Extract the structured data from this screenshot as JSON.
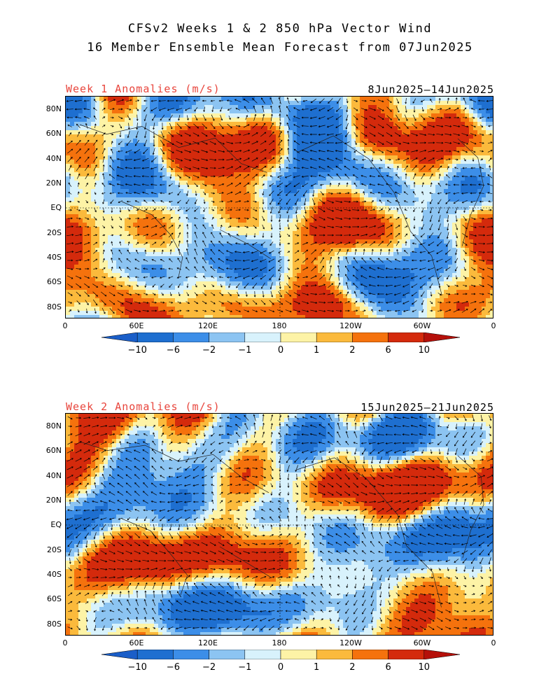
{
  "title": {
    "line1": "CFSv2 Weeks 1 & 2 850 hPa Vector Wind",
    "line2": "16 Member Ensemble Mean Forecast from 07Jun2025"
  },
  "colors": {
    "label_red": "#e8453c",
    "palette": [
      "#1e6fd0",
      "#3c8ee8",
      "#8cc4f2",
      "#d8f2fc",
      "#fdf3a6",
      "#fbba3c",
      "#f5720d",
      "#d42a0c"
    ],
    "end_low": "#1a5ec8",
    "end_high": "#b5100a"
  },
  "panels": [
    {
      "left_label": "Week 1 Anomalies (m/s)",
      "right_label": "8Jun2025—14Jun2025"
    },
    {
      "left_label": "Week 2 Anomalies (m/s)",
      "right_label": "15Jun2025—21Jun2025"
    }
  ],
  "axes": {
    "lat_ticks": [
      "80N",
      "60N",
      "40N",
      "20N",
      "EQ",
      "20S",
      "40S",
      "60S",
      "80S"
    ],
    "lon_ticks": [
      "0",
      "60E",
      "120E",
      "180",
      "120W",
      "60W",
      "0"
    ]
  },
  "colorbar": {
    "labels": [
      "−10",
      "−6",
      "−2",
      "−1",
      "0",
      "1",
      "2",
      "6",
      "10"
    ]
  }
}
